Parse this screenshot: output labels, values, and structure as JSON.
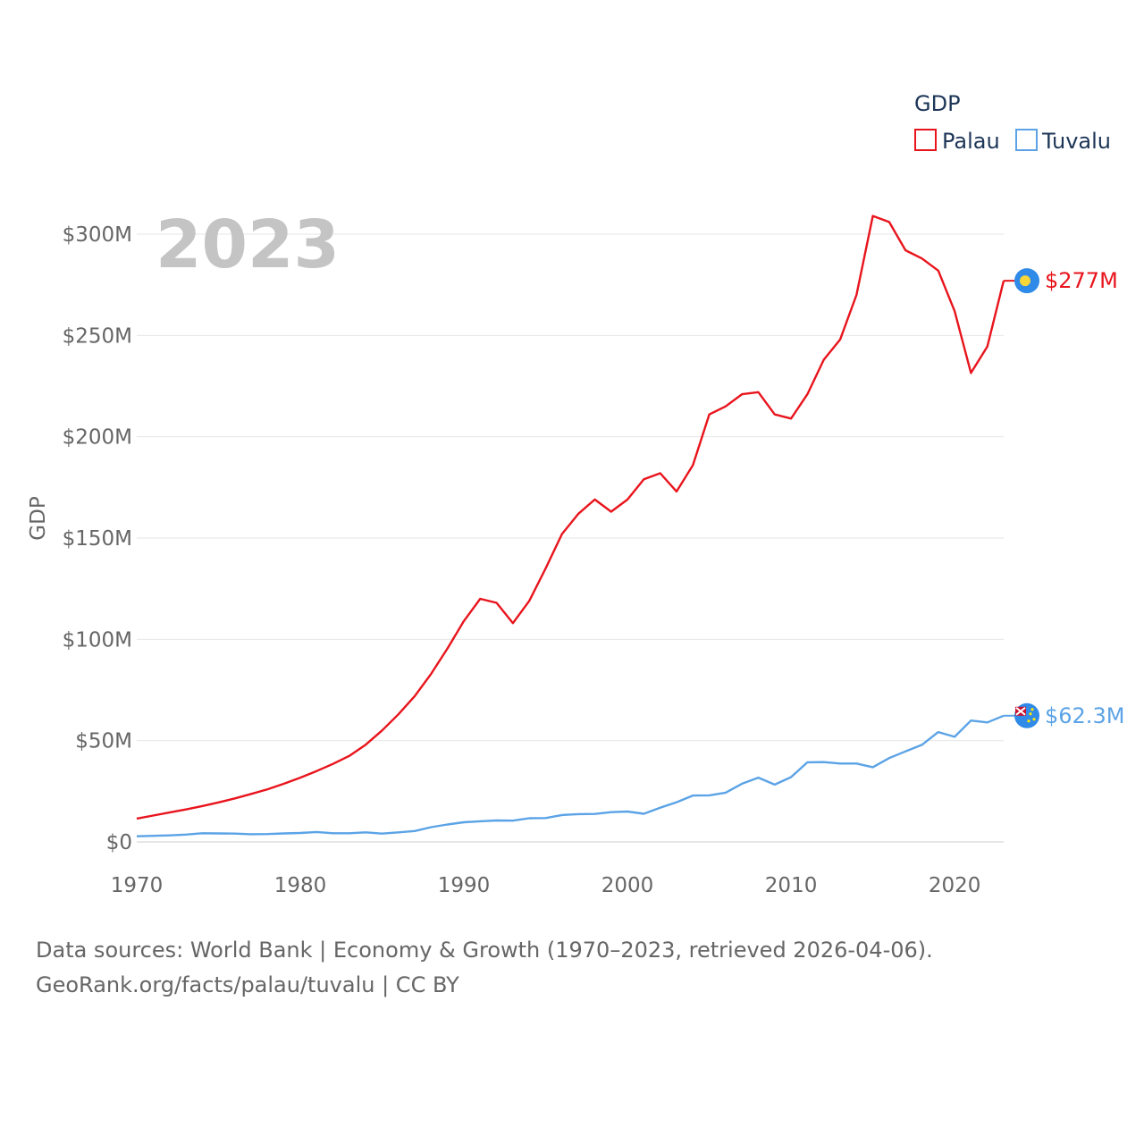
{
  "chart_data": {
    "type": "line",
    "title": "",
    "ylabel": "GDP",
    "xlabel": "",
    "year_label": "2023",
    "xlim": [
      1970,
      2023
    ],
    "ylim": [
      0,
      300000000
    ],
    "x_ticks": [
      1970,
      1980,
      1990,
      2000,
      2010,
      2020
    ],
    "y_ticks": [
      0,
      50000000,
      100000000,
      150000000,
      200000000,
      250000000,
      300000000
    ],
    "y_tick_labels": [
      "$0",
      "$50M",
      "$100M",
      "$150M",
      "$200M",
      "$250M",
      "$300M"
    ],
    "grid": true,
    "legend": {
      "title": "GDP",
      "position": "top-right"
    },
    "x": [
      1970,
      1971,
      1972,
      1973,
      1974,
      1975,
      1976,
      1977,
      1978,
      1979,
      1980,
      1981,
      1982,
      1983,
      1984,
      1985,
      1986,
      1987,
      1988,
      1989,
      1990,
      1991,
      1992,
      1993,
      1994,
      1995,
      1996,
      1997,
      1998,
      1999,
      2000,
      2001,
      2002,
      2003,
      2004,
      2005,
      2006,
      2007,
      2008,
      2009,
      2010,
      2011,
      2012,
      2013,
      2014,
      2015,
      2016,
      2017,
      2018,
      2019,
      2020,
      2021,
      2022,
      2023
    ],
    "series": [
      {
        "name": "Palau",
        "color": "#e8141c",
        "end_label": "$277M",
        "values": [
          11500000,
          13000000,
          14500000,
          16000000,
          17700000,
          19500000,
          21500000,
          23700000,
          26000000,
          28700000,
          31700000,
          35000000,
          38500000,
          42500000,
          48000000,
          55000000,
          63000000,
          72000000,
          83000000,
          95500000,
          109000000,
          120000000,
          118000000,
          108000000,
          119000000,
          135000000,
          152000000,
          162000000,
          169000000,
          163000000,
          169000000,
          179000000,
          182000000,
          173000000,
          186000000,
          211000000,
          215000000,
          221000000,
          222000000,
          211000000,
          209000000,
          221000000,
          238000000,
          248000000,
          270000000,
          309000000,
          306000000,
          292000000,
          288000000,
          282000000,
          262000000,
          231500000,
          244500000,
          277000000
        ]
      },
      {
        "name": "Tuvalu",
        "color": "#5ba3e6",
        "end_label": "$62.3M",
        "values": [
          2800000,
          3000000,
          3200000,
          3600000,
          4300000,
          4200000,
          4100000,
          3800000,
          3900000,
          4200000,
          4400000,
          4900000,
          4300000,
          4300000,
          4700000,
          4100000,
          4700000,
          5400000,
          7300000,
          8600000,
          9700000,
          10200000,
          10600000,
          10500000,
          11700000,
          11800000,
          13300000,
          13700000,
          13800000,
          14700000,
          15000000,
          13900000,
          16900000,
          19600000,
          22900000,
          23000000,
          24300000,
          28700000,
          31700000,
          28300000,
          32000000,
          39300000,
          39400000,
          38700000,
          38700000,
          36900000,
          41400000,
          44700000,
          47900000,
          54200000,
          51900000,
          59900000,
          59000000,
          62300000
        ]
      }
    ]
  },
  "source": {
    "line1": "Data sources: World Bank | Economy & Growth (1970–2023, retrieved 2026-04-06).",
    "line2": "GeoRank.org/facts/palau/tuvalu | CC BY"
  }
}
